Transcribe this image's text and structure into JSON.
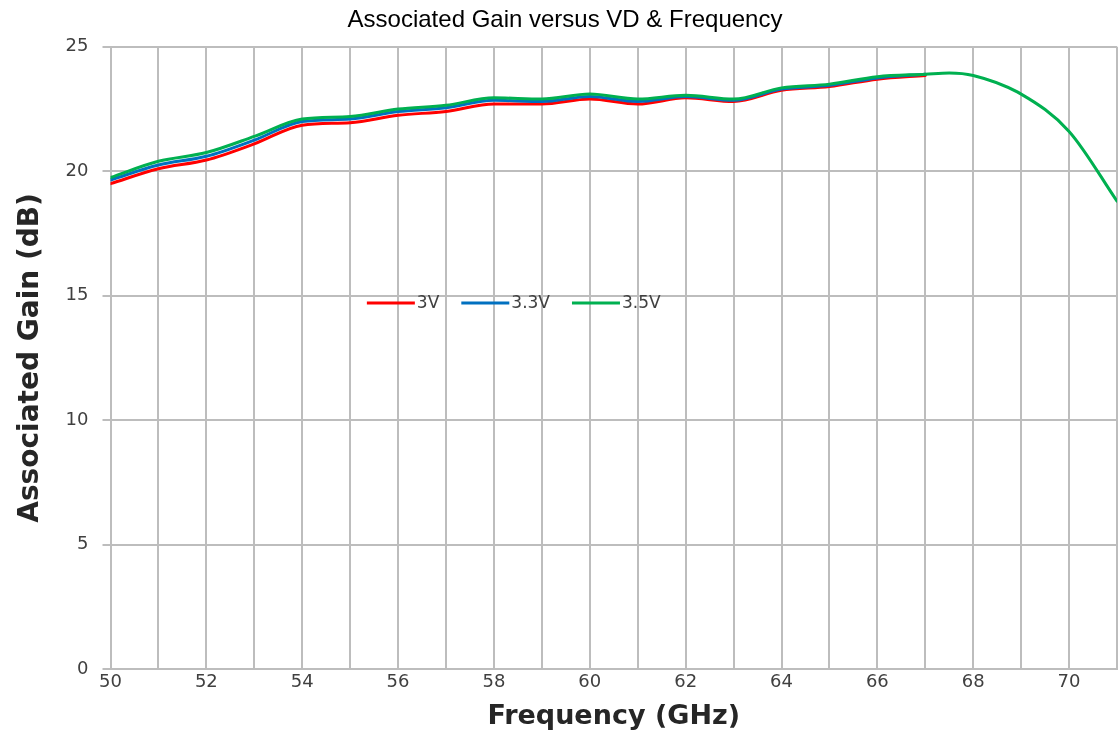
{
  "chart_data": {
    "type": "line",
    "title": "Associated Gain versus VD & Frequency",
    "xlabel": "Frequency (GHz)",
    "ylabel": "Associated Gain (dB)",
    "x": [
      50,
      51,
      52,
      53,
      54,
      55,
      56,
      57,
      58,
      59,
      60,
      61,
      62,
      63,
      64,
      65,
      66,
      67,
      67.5,
      68,
      69,
      70,
      71
    ],
    "series": [
      {
        "name": "3V",
        "color": "#ff0000",
        "values": [
          19.5,
          20.1,
          20.45,
          21.1,
          21.85,
          21.95,
          22.25,
          22.4,
          22.7,
          22.7,
          22.9,
          22.7,
          22.95,
          22.8,
          23.25,
          23.4,
          23.7,
          23.85,
          null,
          null,
          null,
          null,
          null
        ]
      },
      {
        "name": "3.3V",
        "color": "#0070c0",
        "values": [
          19.65,
          20.25,
          20.6,
          21.25,
          22.0,
          22.1,
          22.4,
          22.55,
          22.85,
          22.8,
          23.0,
          22.8,
          23.0,
          22.85,
          23.3,
          23.45,
          23.75,
          23.9,
          null,
          null,
          null,
          null,
          null
        ]
      },
      {
        "name": "3.5V",
        "color": "#00b050",
        "values": [
          19.75,
          20.4,
          20.75,
          21.4,
          22.1,
          22.2,
          22.5,
          22.65,
          22.95,
          22.9,
          23.1,
          22.9,
          23.05,
          22.9,
          23.35,
          23.5,
          23.8,
          23.9,
          23.95,
          23.85,
          23.1,
          21.6,
          18.8
        ]
      }
    ],
    "xlim": [
      50,
      71
    ],
    "xticks": [
      50,
      {
        "value": 51,
        "label": null
      },
      52,
      {
        "value": 53,
        "label": null
      },
      54,
      {
        "value": 55,
        "label": null
      },
      56,
      {
        "value": 57,
        "label": null
      },
      58,
      {
        "value": 59,
        "label": null
      },
      60,
      {
        "value": 61,
        "label": null
      },
      62,
      {
        "value": 63,
        "label": null
      },
      64,
      {
        "value": 65,
        "label": null
      },
      66,
      {
        "value": 67,
        "label": null
      },
      68,
      {
        "value": 69,
        "label": null
      },
      70,
      {
        "value": 71,
        "label": null
      }
    ],
    "ylim": [
      0,
      25
    ],
    "yticks": [
      0,
      5,
      10,
      15,
      20,
      25
    ],
    "grid": true,
    "legend": "center",
    "marker": "none",
    "line_style": "solid"
  }
}
